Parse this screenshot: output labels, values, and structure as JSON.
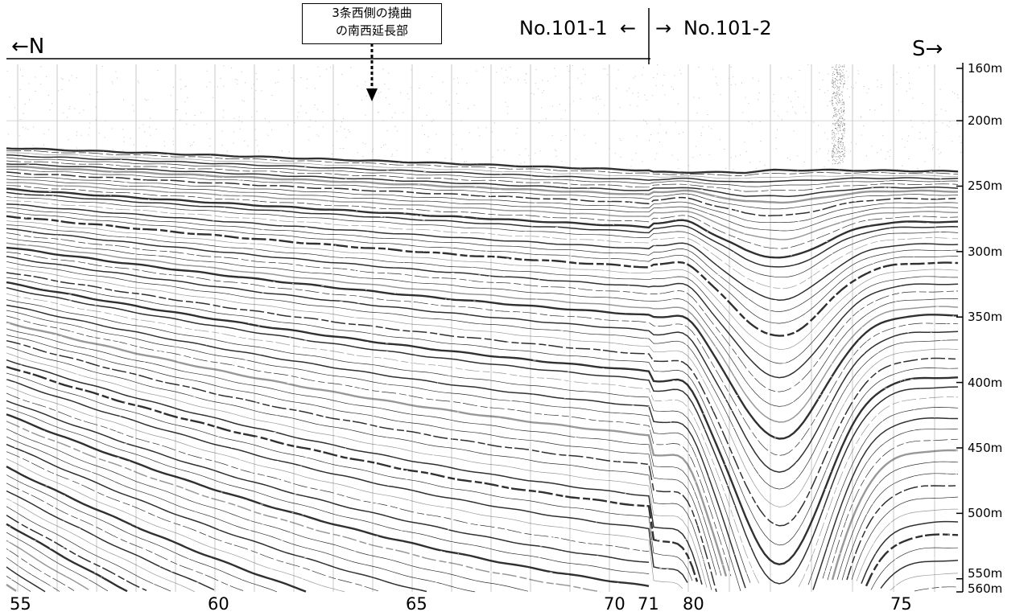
{
  "annotation": {
    "line1": "3条西側の撓曲",
    "line2": "の南西延長部"
  },
  "direction": {
    "left": "←N",
    "right": "S→"
  },
  "line_labels": {
    "left": "No.101-1",
    "right": "No.101-2",
    "left_arrow": "←",
    "right_arrow": "→"
  },
  "depth_axis": {
    "unit": "m",
    "ticks": [
      {
        "value": 160,
        "label": "160m"
      },
      {
        "value": 200,
        "label": "200m"
      },
      {
        "value": 250,
        "label": "250m"
      },
      {
        "value": 300,
        "label": "300m"
      },
      {
        "value": 350,
        "label": "350m"
      },
      {
        "value": 400,
        "label": "400m"
      },
      {
        "value": 450,
        "label": "450m"
      },
      {
        "value": 500,
        "label": "500m"
      },
      {
        "value": 550,
        "label": "550m"
      },
      {
        "value": 560,
        "label": "560m"
      }
    ]
  },
  "shot_labels": [
    "55",
    "60",
    "65",
    "70",
    "71",
    "80",
    "75"
  ],
  "colors": {
    "reflector": "#1a1a1a",
    "background": "#ffffff",
    "noise": "#9a9a9a"
  }
}
